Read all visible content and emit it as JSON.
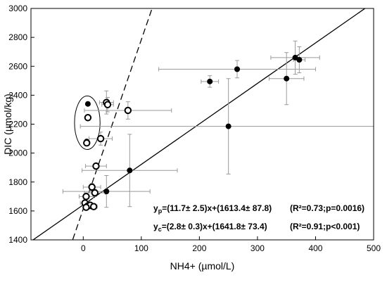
{
  "chart_data": {
    "type": "scatter",
    "xlabel": "NH4+ (µmol/L)",
    "ylabel": "DIC (µmol/kg)",
    "xlim": [
      -90,
      500
    ],
    "ylim": [
      1400,
      3000
    ],
    "x_ticks": [
      0,
      100,
      200,
      300,
      400,
      500
    ],
    "x_tick_labels": [
      "0",
      "100",
      "200",
      "300",
      "400",
      "500"
    ],
    "y_ticks": [
      1400,
      1600,
      1800,
      2000,
      2200,
      2400,
      2600,
      2800,
      3000
    ],
    "y_tick_labels": [
      "1400",
      "1600",
      "1800",
      "2000",
      "2200",
      "2400",
      "2600",
      "2800",
      "3000"
    ],
    "grid": false,
    "series": [
      {
        "marker": "filled-circle",
        "points": [
          {
            "x": 5,
            "y": 1650,
            "xerr": 6,
            "yerr": 15
          },
          {
            "x": 10,
            "y": 1640,
            "xerr": 6,
            "yerr": 15
          },
          {
            "x": 15,
            "y": 1630,
            "xerr": 6,
            "yerr": 15
          },
          {
            "x": 8,
            "y": 2340,
            "xerr": 0,
            "yerr": 0
          },
          {
            "x": 6,
            "y": 2080,
            "xerr": 0,
            "yerr": 0
          },
          {
            "x": 40,
            "y": 1735,
            "xerr": 75,
            "yerr": 110
          },
          {
            "x": 80,
            "y": 1880,
            "xerr": 82,
            "yerr": 250
          },
          {
            "x": 218,
            "y": 2495,
            "xerr": 15,
            "yerr": 40
          },
          {
            "x": 265,
            "y": 2580,
            "xerr": 135,
            "yerr": 60
          },
          {
            "x": 250,
            "y": 2185,
            "xerr": 255,
            "yerr": 330
          },
          {
            "x": 350,
            "y": 2515,
            "xerr": 30,
            "yerr": 180
          },
          {
            "x": 365,
            "y": 2660,
            "xerr": 42,
            "yerr": 115
          },
          {
            "x": 372,
            "y": 2645,
            "xerr": 10,
            "yerr": 90
          }
        ]
      },
      {
        "marker": "open-circle",
        "points": [
          {
            "x": 8,
            "y": 2245,
            "xerr": 0,
            "yerr": 0
          },
          {
            "x": 6,
            "y": 2070,
            "xerr": 0,
            "yerr": 0
          },
          {
            "x": 40,
            "y": 2350,
            "xerr": 12,
            "yerr": 80
          },
          {
            "x": 42,
            "y": 2335,
            "xerr": 10,
            "yerr": 50
          },
          {
            "x": 77,
            "y": 2295,
            "xerr": 75,
            "yerr": 60
          },
          {
            "x": 30,
            "y": 2100,
            "xerr": 20,
            "yerr": 45
          },
          {
            "x": 22,
            "y": 1910,
            "xerr": 18,
            "yerr": 20
          },
          {
            "x": 15,
            "y": 1765,
            "xerr": 15,
            "yerr": 25
          },
          {
            "x": 20,
            "y": 1725,
            "xerr": 18,
            "yerr": 25
          },
          {
            "x": 5,
            "y": 1700,
            "xerr": 12,
            "yerr": 20
          },
          {
            "x": 3,
            "y": 1655,
            "xerr": 8,
            "yerr": 15
          },
          {
            "x": 8,
            "y": 1635,
            "xerr": 8,
            "yerr": 15
          },
          {
            "x": 12,
            "y": 1640,
            "xerr": 8,
            "yerr": 15
          },
          {
            "x": 18,
            "y": 1630,
            "xerr": 6,
            "yerr": 15
          },
          {
            "x": 5,
            "y": 1625,
            "xerr": 5,
            "yerr": 15
          }
        ]
      }
    ],
    "regression_lines": [
      {
        "style": "solid",
        "slope": 2.8,
        "intercept": 1641.8,
        "x_range": [
          -90,
          500
        ]
      },
      {
        "style": "dashed",
        "slope": 11.7,
        "intercept": 1613.4,
        "x_range": [
          -18,
          122
        ]
      }
    ],
    "highlight_ellipse": {
      "cx": 7,
      "cy": 2210,
      "rx": 22,
      "ry": 185
    },
    "annotations": [
      {
        "kind": "eq",
        "base": "y",
        "sub": "p",
        "rest": "=(11.7±  2.5)x+(1613.4±  87.8)",
        "stats": "(R²=0.73;p=0.0016)"
      },
      {
        "kind": "eq",
        "base": "y",
        "sub": "c",
        "rest": "=(2.8±  0.3)x+(1641.8±  73.4)",
        "stats": "(R²=0.91;p<0.001)"
      }
    ]
  }
}
